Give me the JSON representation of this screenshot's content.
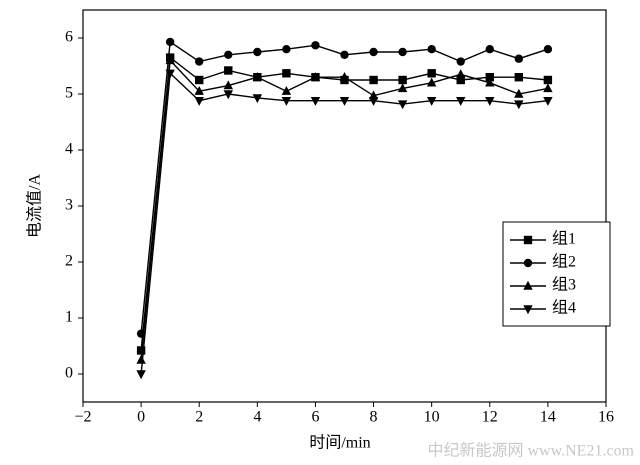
{
  "chart_data": {
    "type": "line",
    "x_label": "时间/min",
    "y_label": "电流值/A",
    "x": [
      0,
      1,
      2,
      3,
      4,
      5,
      6,
      7,
      8,
      9,
      10,
      11,
      12,
      13,
      14
    ],
    "series": [
      {
        "name": "组1",
        "color": "#000000",
        "marker": "square",
        "values": [
          0.42,
          5.65,
          5.25,
          5.42,
          5.3,
          5.37,
          5.3,
          5.25,
          5.25,
          5.25,
          5.37,
          5.25,
          5.3,
          5.3,
          5.25
        ]
      },
      {
        "name": "组2",
        "color": "#000000",
        "marker": "circle",
        "values": [
          0.72,
          5.93,
          5.58,
          5.7,
          5.75,
          5.8,
          5.87,
          5.7,
          5.75,
          5.75,
          5.8,
          5.58,
          5.8,
          5.63,
          5.8
        ]
      },
      {
        "name": "组3",
        "color": "#000000",
        "marker": "triangle-up",
        "values": [
          0.25,
          5.6,
          5.05,
          5.15,
          5.3,
          5.05,
          5.3,
          5.3,
          4.97,
          5.1,
          5.2,
          5.35,
          5.2,
          5.0,
          5.1
        ]
      },
      {
        "name": "组4",
        "color": "#000000",
        "marker": "triangle-down",
        "values": [
          0.0,
          5.37,
          4.88,
          5.0,
          4.93,
          4.88,
          4.88,
          4.88,
          4.88,
          4.82,
          4.88,
          4.88,
          4.88,
          4.82,
          4.88
        ]
      }
    ],
    "xlim": [
      -2,
      16
    ],
    "xticks": [
      {
        "value": -2,
        "label": "−2"
      },
      0,
      2,
      4,
      6,
      8,
      10,
      12,
      14,
      16
    ],
    "ylim": [
      -0.5,
      6.5
    ],
    "yticks": [
      0,
      1,
      2,
      3,
      4,
      5,
      6
    ],
    "grid": false,
    "legend": "right",
    "watermark": "中纪新能源网 www.NE21.com"
  }
}
